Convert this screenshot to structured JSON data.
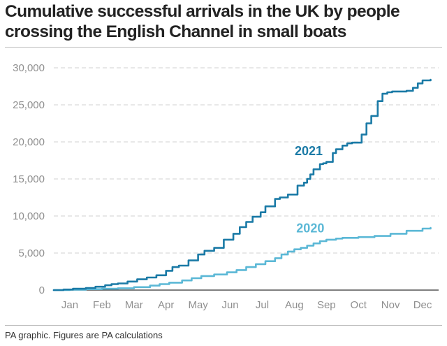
{
  "title": "Cumulative successful arrivals in the UK by people crossing the English Channel in small boats",
  "footer": "PA graphic. Figures are PA calculations",
  "colors": {
    "series_2021": "#1a7aa6",
    "series_2020": "#5bb8d6",
    "grid": "#d0d0d0",
    "axis": "#333333",
    "tick_text": "#8f8f8f"
  },
  "chart_data": {
    "type": "line",
    "title": "Cumulative successful arrivals in the UK by people crossing the English Channel in small boats",
    "xlabel": "",
    "ylabel": "",
    "categories": [
      "Jan",
      "Feb",
      "Mar",
      "Apr",
      "May",
      "Jun",
      "Jul",
      "Aug",
      "Sep",
      "Oct",
      "Nov",
      "Dec"
    ],
    "yticks": [
      "0",
      "5,000",
      "10,000",
      "15,000",
      "20,000",
      "25,000",
      "30,000"
    ],
    "ylim": [
      0,
      30000
    ],
    "xlim": [
      0,
      12
    ],
    "grid": true,
    "series": [
      {
        "name": "2021",
        "color": "#1a7aa6",
        "x": [
          0,
          0.3,
          0.6,
          1.0,
          1.3,
          1.6,
          1.8,
          2.0,
          2.3,
          2.6,
          2.9,
          3.2,
          3.5,
          3.7,
          3.9,
          4.2,
          4.5,
          4.7,
          5.0,
          5.3,
          5.6,
          5.8,
          6.0,
          6.2,
          6.45,
          6.6,
          6.9,
          7.05,
          7.3,
          7.6,
          7.8,
          7.9,
          8.0,
          8.1,
          8.3,
          8.4,
          8.5,
          8.7,
          8.8,
          9.0,
          9.15,
          9.3,
          9.6,
          9.75,
          9.9,
          10.1,
          10.25,
          10.4,
          10.55,
          10.8,
          11.0,
          11.2,
          11.35,
          11.5,
          11.75
        ],
        "y": [
          0,
          80,
          180,
          280,
          450,
          650,
          800,
          900,
          1150,
          1450,
          1700,
          2000,
          2600,
          3100,
          3300,
          4000,
          4800,
          5300,
          5700,
          6800,
          7600,
          8500,
          9200,
          9900,
          10500,
          11300,
          12300,
          12500,
          12900,
          14100,
          14500,
          15000,
          15600,
          16300,
          17000,
          17100,
          17300,
          18500,
          19000,
          19500,
          19800,
          19900,
          21000,
          22500,
          23500,
          25500,
          26500,
          26700,
          26800,
          26800,
          26900,
          27300,
          27900,
          28300,
          28400
        ]
      },
      {
        "name": "2020",
        "color": "#5bb8d6",
        "x": [
          0,
          0.5,
          1.0,
          1.5,
          2.0,
          2.5,
          3.0,
          3.3,
          3.6,
          4.0,
          4.3,
          4.6,
          5.0,
          5.4,
          5.7,
          6.0,
          6.3,
          6.6,
          6.9,
          7.1,
          7.3,
          7.5,
          7.7,
          7.9,
          8.1,
          8.3,
          8.5,
          8.8,
          9.0,
          9.5,
          10.0,
          10.5,
          11.0,
          11.5,
          11.75
        ],
        "y": [
          0,
          50,
          120,
          180,
          250,
          400,
          600,
          800,
          1000,
          1300,
          1600,
          1900,
          2100,
          2400,
          2700,
          3100,
          3500,
          3900,
          4300,
          4800,
          5200,
          5500,
          5700,
          6000,
          6300,
          6600,
          6800,
          6950,
          7050,
          7150,
          7300,
          7600,
          8000,
          8300,
          8400
        ]
      }
    ],
    "annotations": [
      {
        "text": "2021",
        "series": "2021"
      },
      {
        "text": "2020",
        "series": "2020"
      }
    ]
  }
}
